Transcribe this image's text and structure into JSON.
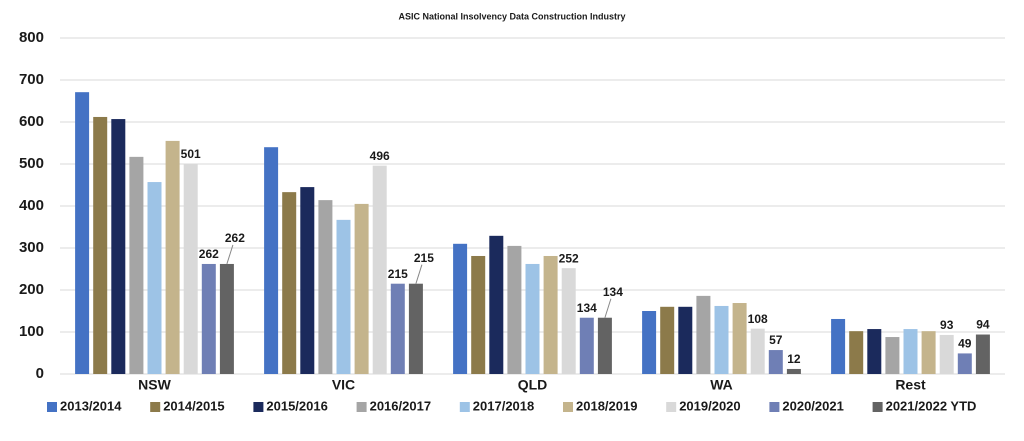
{
  "chart_data": {
    "type": "bar",
    "title": "ASIC National Insolvency Data Construction Industry",
    "categories": [
      "NSW",
      "VIC",
      "QLD",
      "WA",
      "Rest"
    ],
    "series": [
      {
        "name": "2013/2014",
        "color": "#4472c4",
        "values": [
          671,
          540,
          310,
          150,
          131
        ]
      },
      {
        "name": "2014/2015",
        "color": "#8c7a4a",
        "values": [
          612,
          433,
          281,
          160,
          102
        ]
      },
      {
        "name": "2015/2016",
        "color": "#1b2a5c",
        "values": [
          607,
          445,
          329,
          160,
          107
        ]
      },
      {
        "name": "2016/2017",
        "color": "#a5a5a5",
        "values": [
          517,
          414,
          305,
          186,
          88
        ]
      },
      {
        "name": "2017/2018",
        "color": "#9dc3e6",
        "values": [
          457,
          367,
          262,
          162,
          107
        ]
      },
      {
        "name": "2018/2019",
        "color": "#c4b48c",
        "values": [
          555,
          405,
          281,
          169,
          102
        ]
      },
      {
        "name": "2019/2020",
        "color": "#d9d9d9",
        "values": [
          501,
          496,
          252,
          108,
          93
        ],
        "show_labels": true
      },
      {
        "name": "2020/2021",
        "color": "#6f7fb5",
        "values": [
          262,
          215,
          134,
          57,
          49
        ],
        "show_labels": true
      },
      {
        "name": "2021/2022 YTD",
        "color": "#636363",
        "values": [
          262,
          215,
          134,
          12,
          94
        ],
        "show_labels": true
      }
    ],
    "ylim": [
      0,
      800
    ],
    "yticks": [
      0,
      100,
      200,
      300,
      400,
      500,
      600,
      700,
      800
    ],
    "grid": true,
    "legend": "bottom"
  }
}
